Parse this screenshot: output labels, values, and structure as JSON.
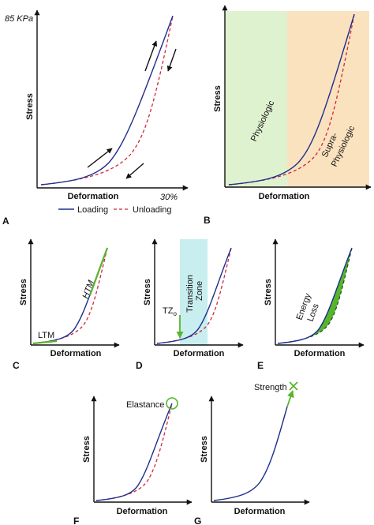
{
  "colors": {
    "loading": "#1f2f8c",
    "unloading": "#d0263a",
    "green": "#57b52c",
    "physiologic_zone": "#dff2cf",
    "supra_zone": "#fbe2bf",
    "transition_zone": "#c8eef0"
  },
  "common": {
    "stress": "Stress",
    "deformation": "Deformation"
  },
  "panels": {
    "A": {
      "letter": "A",
      "max_stress": "85 KPa",
      "max_strain": "30%",
      "legend": {
        "loading": "Loading",
        "unloading": "Unloading"
      }
    },
    "B": {
      "letter": "B",
      "physiologic": "Physiologic",
      "supra_line1": "Supra-",
      "supra_line2": "Physiologic"
    },
    "C": {
      "letter": "C",
      "htm": "HTM",
      "ltm": "LTM"
    },
    "D": {
      "letter": "D",
      "tz": "TZ",
      "tz_sub": "o",
      "tz_line1": "Transition",
      "tz_line2": "Zone"
    },
    "E": {
      "letter": "E",
      "line1": "Energy",
      "line2": "Loss"
    },
    "F": {
      "letter": "F",
      "elastance": "Elastance"
    },
    "G": {
      "letter": "G",
      "strength": "Strength"
    }
  }
}
